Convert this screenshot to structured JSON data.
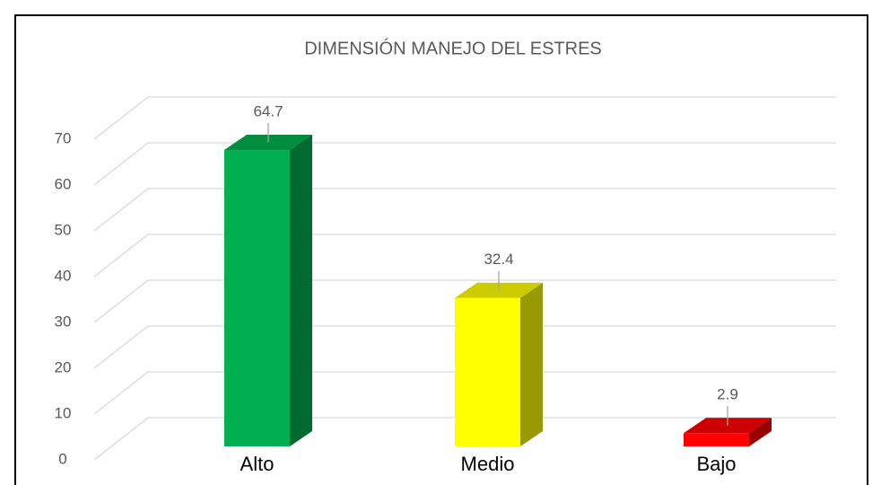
{
  "chart_data": {
    "type": "bar3d",
    "title": "DIMENSIÓN MANEJO DEL ESTRES",
    "categories": [
      "Alto",
      "Medio",
      "Bajo"
    ],
    "values": [
      64.7,
      32.4,
      2.9
    ],
    "colors": [
      "#00b050",
      "#ffff00",
      "#ff0000"
    ],
    "ylim": [
      0,
      70
    ],
    "yticks": [
      0,
      10,
      20,
      30,
      40,
      50,
      60,
      70
    ],
    "grid": true
  }
}
